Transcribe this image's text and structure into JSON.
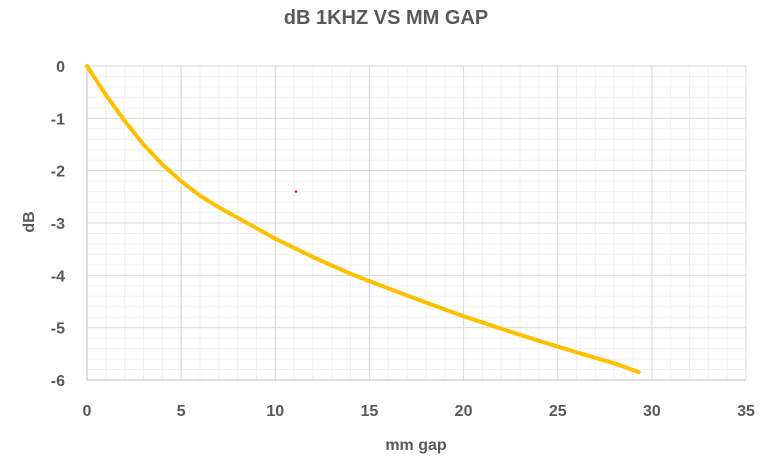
{
  "chart_data": {
    "type": "line",
    "title": "dB 1KHZ VS MM GAP",
    "xlabel": "mm gap",
    "ylabel": "dB",
    "xlim": [
      0,
      35
    ],
    "ylim": [
      -6,
      0
    ],
    "x_ticks": [
      "0",
      "5",
      "10",
      "15",
      "20",
      "25",
      "30",
      "35"
    ],
    "y_ticks": [
      "0",
      "-1",
      "-2",
      "-3",
      "-4",
      "-5",
      "-6"
    ],
    "grid": "major and minor",
    "legend": "none",
    "series": [
      {
        "color": "#FFC000",
        "points": [
          [
            0,
            0
          ],
          [
            1,
            -0.55
          ],
          [
            2,
            -1.05
          ],
          [
            3,
            -1.5
          ],
          [
            4,
            -1.88
          ],
          [
            5,
            -2.2
          ],
          [
            6,
            -2.48
          ],
          [
            7,
            -2.7
          ],
          [
            8,
            -2.9
          ],
          [
            9,
            -3.1
          ],
          [
            10,
            -3.3
          ],
          [
            12,
            -3.65
          ],
          [
            14,
            -3.97
          ],
          [
            16,
            -4.25
          ],
          [
            18,
            -4.52
          ],
          [
            20,
            -4.78
          ],
          [
            22,
            -5.02
          ],
          [
            24,
            -5.25
          ],
          [
            26,
            -5.47
          ],
          [
            28,
            -5.68
          ],
          [
            29.3,
            -5.85
          ]
        ]
      }
    ],
    "stray_marker": {
      "x": 11.1,
      "y": -2.4,
      "color": "#ff0000"
    }
  }
}
